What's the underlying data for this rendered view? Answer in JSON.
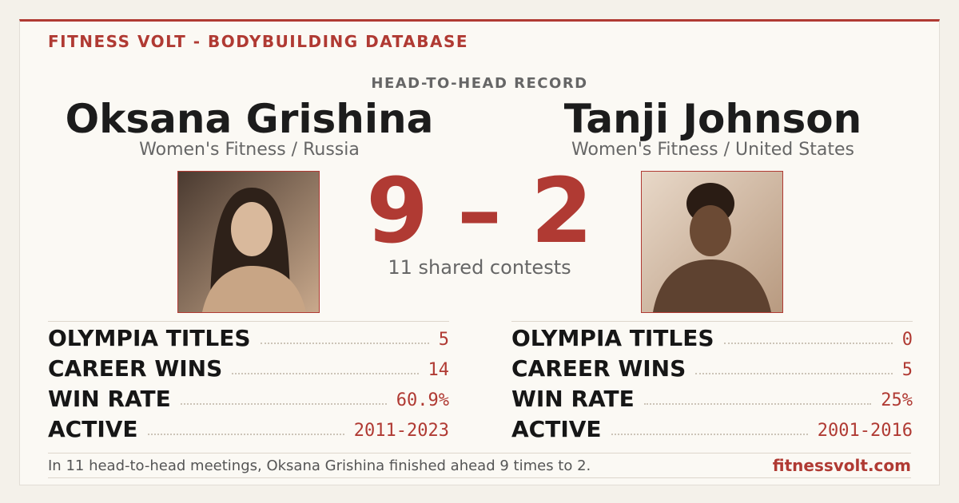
{
  "header": {
    "brand": "FITNESS VOLT - BODYBUILDING DATABASE",
    "subtitle": "HEAD-TO-HEAD RECORD"
  },
  "athletes": [
    {
      "name": "Oksana Grishina",
      "division": "Women's Fitness / Russia",
      "stats": [
        {
          "label": "OLYMPIA TITLES",
          "value": "5"
        },
        {
          "label": "CAREER WINS",
          "value": "14"
        },
        {
          "label": "WIN RATE",
          "value": "60.9%"
        },
        {
          "label": "ACTIVE",
          "value": "2011-2023"
        }
      ]
    },
    {
      "name": "Tanji Johnson",
      "division": "Women's Fitness / United States",
      "stats": [
        {
          "label": "OLYMPIA TITLES",
          "value": "0"
        },
        {
          "label": "CAREER WINS",
          "value": "5"
        },
        {
          "label": "WIN RATE",
          "value": "25%"
        },
        {
          "label": "ACTIVE",
          "value": "2001-2016"
        }
      ]
    }
  ],
  "score": {
    "left": "9",
    "separator": "–",
    "right": "2",
    "caption": "11 shared contests"
  },
  "footer": {
    "summary": "In 11 head-to-head meetings, Oksana Grishina finished ahead 9 times to 2.",
    "site": "fitnessvolt.com"
  }
}
